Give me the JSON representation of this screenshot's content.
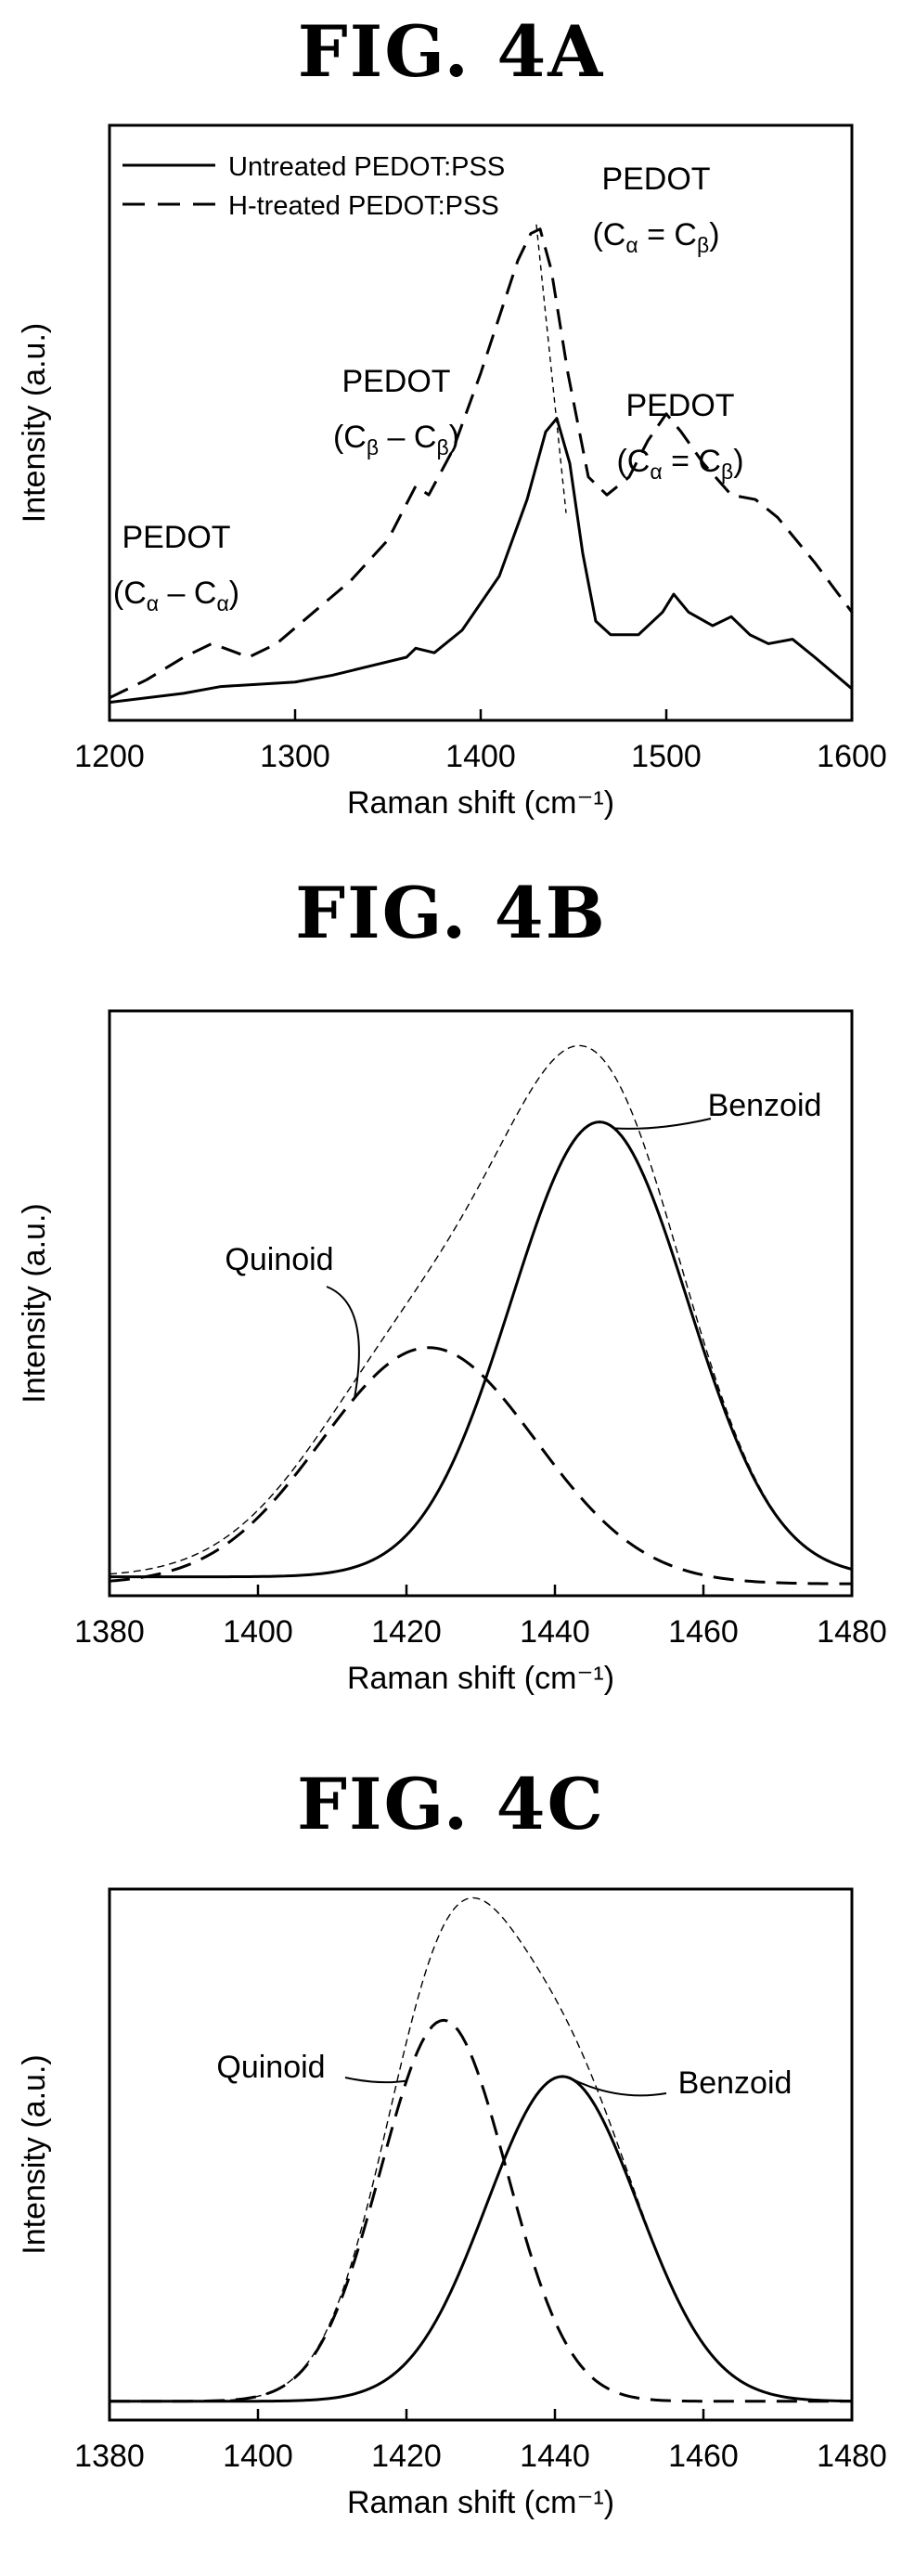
{
  "chart_data": [
    {
      "type": "line",
      "title": "FIG. 4A",
      "xlabel": "Raman shift (cm⁻¹)",
      "ylabel": "Intensity (a.u.)",
      "xlim": [
        1200,
        1600
      ],
      "xticks": [
        1200,
        1300,
        1400,
        1500,
        1600
      ],
      "yticks": false,
      "legend": "top-left",
      "series": [
        {
          "name": "Untreated PEDOT:PSS",
          "style": "solid",
          "x": [
            1200,
            1240,
            1260,
            1300,
            1320,
            1340,
            1360,
            1365,
            1375,
            1390,
            1410,
            1425,
            1435,
            1441,
            1448,
            1455,
            1462,
            1470,
            1485,
            1498,
            1504,
            1512,
            1525,
            1535,
            1545,
            1555,
            1568,
            1580,
            1600
          ],
          "y": [
            0.02,
            0.04,
            0.055,
            0.065,
            0.08,
            0.1,
            0.12,
            0.14,
            0.13,
            0.18,
            0.3,
            0.47,
            0.62,
            0.65,
            0.55,
            0.35,
            0.2,
            0.17,
            0.17,
            0.22,
            0.26,
            0.22,
            0.19,
            0.21,
            0.17,
            0.15,
            0.16,
            0.12,
            0.05
          ]
        },
        {
          "name": "H-treated PEDOT:PSS",
          "style": "dashed",
          "x": [
            1200,
            1220,
            1240,
            1255,
            1262,
            1275,
            1290,
            1310,
            1330,
            1350,
            1365,
            1372,
            1385,
            1400,
            1412,
            1420,
            1427,
            1432,
            1438,
            1447,
            1458,
            1468,
            1480,
            1490,
            1500,
            1508,
            1520,
            1535,
            1548,
            1560,
            1580,
            1600
          ],
          "y": [
            0.03,
            0.07,
            0.12,
            0.15,
            0.14,
            0.12,
            0.15,
            0.22,
            0.29,
            0.38,
            0.5,
            0.48,
            0.58,
            0.75,
            0.9,
            1.0,
            1.06,
            1.07,
            0.98,
            0.75,
            0.52,
            0.48,
            0.52,
            0.6,
            0.66,
            0.62,
            0.55,
            0.48,
            0.47,
            0.43,
            0.33,
            0.22
          ]
        }
      ],
      "annotations": [
        {
          "line1": "PEDOT",
          "base1": "C",
          "sub1": "α",
          "op": "–",
          "base2": "C",
          "sub2": "α",
          "x": 1260
        },
        {
          "line1": "PEDOT",
          "base1": "C",
          "sub1": "β",
          "op": "–",
          "base2": "C",
          "sub2": "β",
          "x": 1365
        },
        {
          "line1": "PEDOT",
          "base1": "C",
          "sub1": "α",
          "op": "=",
          "base2": "C",
          "sub2": "β",
          "x": 1445
        },
        {
          "line1": "PEDOT",
          "base1": "C",
          "sub1": "α",
          "op": "=",
          "base2": "C",
          "sub2": "β",
          "x": 1508
        }
      ],
      "peak_shift_line": {
        "from": [
          1430,
          1.08
        ],
        "to": [
          1446,
          0.44
        ]
      }
    },
    {
      "type": "line",
      "title": "FIG. 4B",
      "xlabel": "Raman shift (cm⁻¹)",
      "ylabel": "Intensity (a.u.)",
      "xlim": [
        1380,
        1480
      ],
      "xticks": [
        1380,
        1400,
        1420,
        1440,
        1460,
        1480
      ],
      "yticks": false,
      "envelope": {
        "style": "thin-dashed",
        "components": [
          "Quinoid",
          "Benzoid"
        ]
      },
      "series": [
        {
          "name": "Quinoid",
          "style": "dashed",
          "peak_center": 1423,
          "peak_height": 0.4,
          "fwhm": 34,
          "baseline": 0.0
        },
        {
          "name": "Benzoid",
          "style": "solid",
          "peak_center": 1446,
          "peak_height": 0.77,
          "fwhm": 28,
          "baseline": 0.012
        }
      ]
    },
    {
      "type": "line",
      "title": "FIG. 4C",
      "xlabel": "Raman shift (cm⁻¹)",
      "ylabel": "Intensity (a.u.)",
      "xlim": [
        1380,
        1480
      ],
      "xticks": [
        1380,
        1400,
        1420,
        1440,
        1460,
        1480
      ],
      "yticks": false,
      "envelope": {
        "style": "thin-dashed",
        "components": [
          "Quinoid",
          "Benzoid"
        ]
      },
      "series": [
        {
          "name": "Quinoid",
          "style": "dashed",
          "peak_center": 1425,
          "peak_height": 0.61,
          "fwhm": 20,
          "baseline": 0.0
        },
        {
          "name": "Benzoid",
          "style": "solid",
          "peak_center": 1441,
          "peak_height": 0.52,
          "fwhm": 24,
          "baseline": 0.0
        }
      ]
    }
  ]
}
